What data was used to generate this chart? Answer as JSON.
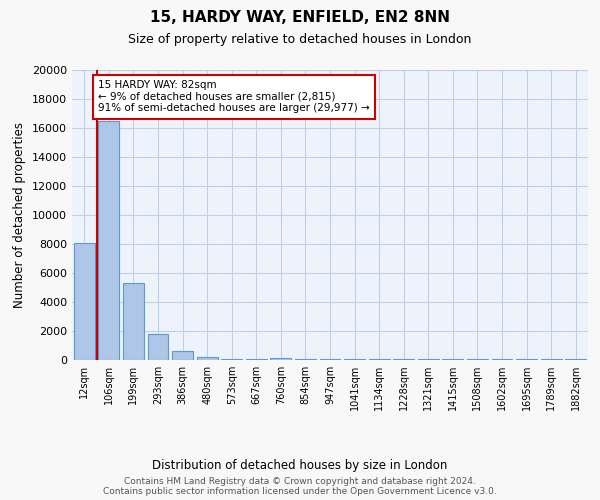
{
  "title1": "15, HARDY WAY, ENFIELD, EN2 8NN",
  "title2": "Size of property relative to detached houses in London",
  "xlabel": "Distribution of detached houses by size in London",
  "ylabel": "Number of detached properties",
  "bins": [
    "12sqm",
    "106sqm",
    "199sqm",
    "293sqm",
    "386sqm",
    "480sqm",
    "573sqm",
    "667sqm",
    "760sqm",
    "854sqm",
    "947sqm",
    "1041sqm",
    "1134sqm",
    "1228sqm",
    "1321sqm",
    "1415sqm",
    "1508sqm",
    "1602sqm",
    "1695sqm",
    "1789sqm",
    "1882sqm"
  ],
  "values": [
    8050,
    16500,
    5300,
    1800,
    620,
    200,
    100,
    50,
    150,
    50,
    50,
    50,
    50,
    50,
    50,
    50,
    100,
    50,
    50,
    50,
    50
  ],
  "bar_color": "#aec6e8",
  "bar_edge_color": "#5b9bd5",
  "bg_color": "#eef3fb",
  "grid_color": "#c0cfe8",
  "marker_color": "#cc0000",
  "annotation_text": "15 HARDY WAY: 82sqm\n← 9% of detached houses are smaller (2,815)\n91% of semi-detached houses are larger (29,977) →",
  "annotation_box_color": "#ffffff",
  "annotation_box_edge": "#cc0000",
  "ylim": [
    0,
    20000
  ],
  "yticks": [
    0,
    2000,
    4000,
    6000,
    8000,
    10000,
    12000,
    14000,
    16000,
    18000,
    20000
  ],
  "footnote1": "Contains HM Land Registry data © Crown copyright and database right 2024.",
  "footnote2": "Contains public sector information licensed under the Open Government Licence v3.0."
}
